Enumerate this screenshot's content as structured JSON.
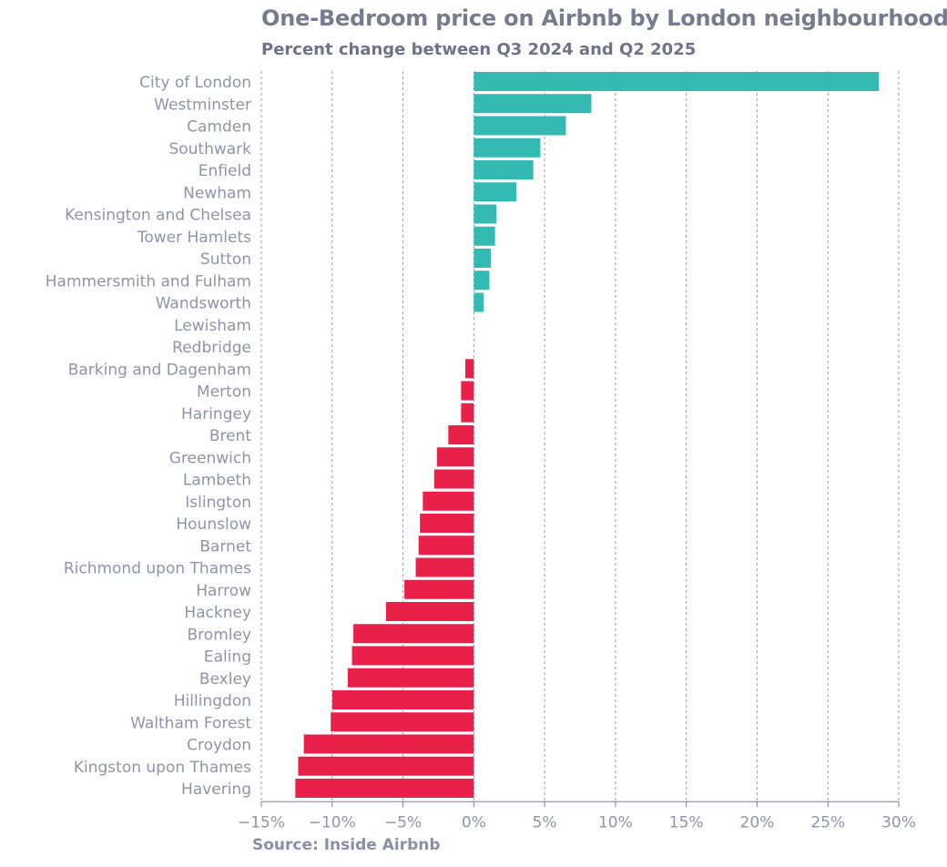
{
  "chart_data": {
    "type": "bar",
    "orientation": "horizontal",
    "title": "One-Bedroom price on Airbnb by London neighbourhood",
    "subtitle": "Percent change between Q3 2024 and Q2 2025",
    "source": "Source: Inside Airbnb",
    "xlim": [
      -15,
      30
    ],
    "xticks": [
      -15,
      -10,
      -5,
      0,
      5,
      10,
      15,
      20,
      25,
      30
    ],
    "xtick_labels": [
      "−15%",
      "−10%",
      "−5%",
      "0%",
      "5%",
      "10%",
      "15%",
      "20%",
      "25%",
      "30%"
    ],
    "grid": "vertical dashed",
    "legend": "none",
    "colors": {
      "positive": "#35b9b3",
      "negative": "#e8204a"
    },
    "categories": [
      "City of London",
      "Westminster",
      "Camden",
      "Southwark",
      "Enfield",
      "Newham",
      "Kensington and Chelsea",
      "Tower Hamlets",
      "Sutton",
      "Hammersmith and Fulham",
      "Wandsworth",
      "Lewisham",
      "Redbridge",
      "Barking and Dagenham",
      "Merton",
      "Haringey",
      "Brent",
      "Greenwich",
      "Lambeth",
      "Islington",
      "Hounslow",
      "Barnet",
      "Richmond upon Thames",
      "Harrow",
      "Hackney",
      "Bromley",
      "Ealing",
      "Bexley",
      "Hillingdon",
      "Waltham Forest",
      "Croydon",
      "Kingston upon Thames",
      "Havering"
    ],
    "values": [
      28.6,
      8.3,
      6.5,
      4.7,
      4.2,
      3.0,
      1.6,
      1.5,
      1.2,
      1.1,
      0.7,
      0.0,
      0.0,
      -0.6,
      -0.9,
      -0.9,
      -1.8,
      -2.6,
      -2.8,
      -3.6,
      -3.8,
      -3.9,
      -4.1,
      -4.9,
      -6.2,
      -8.5,
      -8.6,
      -8.9,
      -10.0,
      -10.1,
      -12.0,
      -12.4,
      -12.6
    ]
  }
}
